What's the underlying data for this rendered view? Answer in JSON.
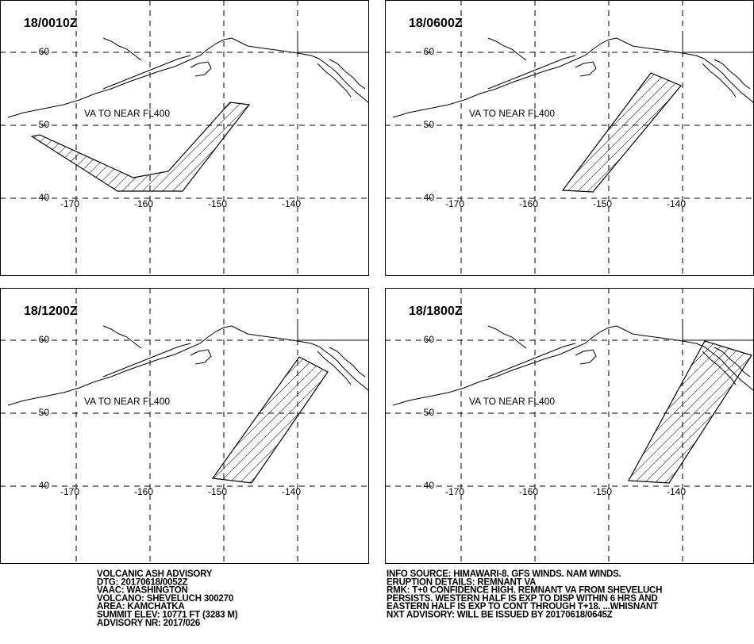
{
  "panels": [
    {
      "title": "18/0010Z",
      "label": "VA TO NEAR FL400",
      "lat_labels": [
        60,
        50,
        40
      ],
      "lon_labels": [
        -170,
        -160,
        -150,
        -140
      ]
    },
    {
      "title": "18/0600Z",
      "label": "VA TO NEAR FL400",
      "lat_labels": [
        60,
        50,
        40
      ],
      "lon_labels": [
        -170,
        -160,
        -150,
        -140
      ]
    },
    {
      "title": "18/1200Z",
      "label": "VA TO NEAR FL400",
      "lat_labels": [
        60,
        50,
        40
      ],
      "lon_labels": [
        -170,
        -160,
        -150,
        -140
      ]
    },
    {
      "title": "18/1800Z",
      "label": "VA TO NEAR FL400",
      "lat_labels": [
        60,
        50,
        40
      ],
      "lon_labels": [
        -170,
        -160,
        -150,
        -140
      ]
    }
  ],
  "advisory": {
    "left": [
      "VOLCANIC ASH ADVISORY",
      "DTG: 20170618/0052Z",
      "VAAC: WASHINGTON",
      "VOLCANO: SHEVELUCH 300270",
      "AREA: KAMCHATKA",
      "SUMMIT ELEV: 10771 FT (3283 M)",
      "ADVISORY NR: 2017/026"
    ],
    "right": [
      "INFO SOURCE: HIMAWARI-8. GFS WINDS. NAM WINDS.",
      "ERUPTION DETAILS: REMNANT VA",
      "RMK: T+0 CONFIDENCE HIGH. REMNANT VA FROM SHEVELUCH",
      "PERSISTS. WESTERN HALF IS EXP TO DISP WITHIN 6 HRS AND",
      "EASTERN HALF IS EXP TO CONT THROUGH T+18. ...WHISNANT",
      "NXT ADVISORY: WILL BE ISSUED BY 20170618/0645Z"
    ]
  }
}
